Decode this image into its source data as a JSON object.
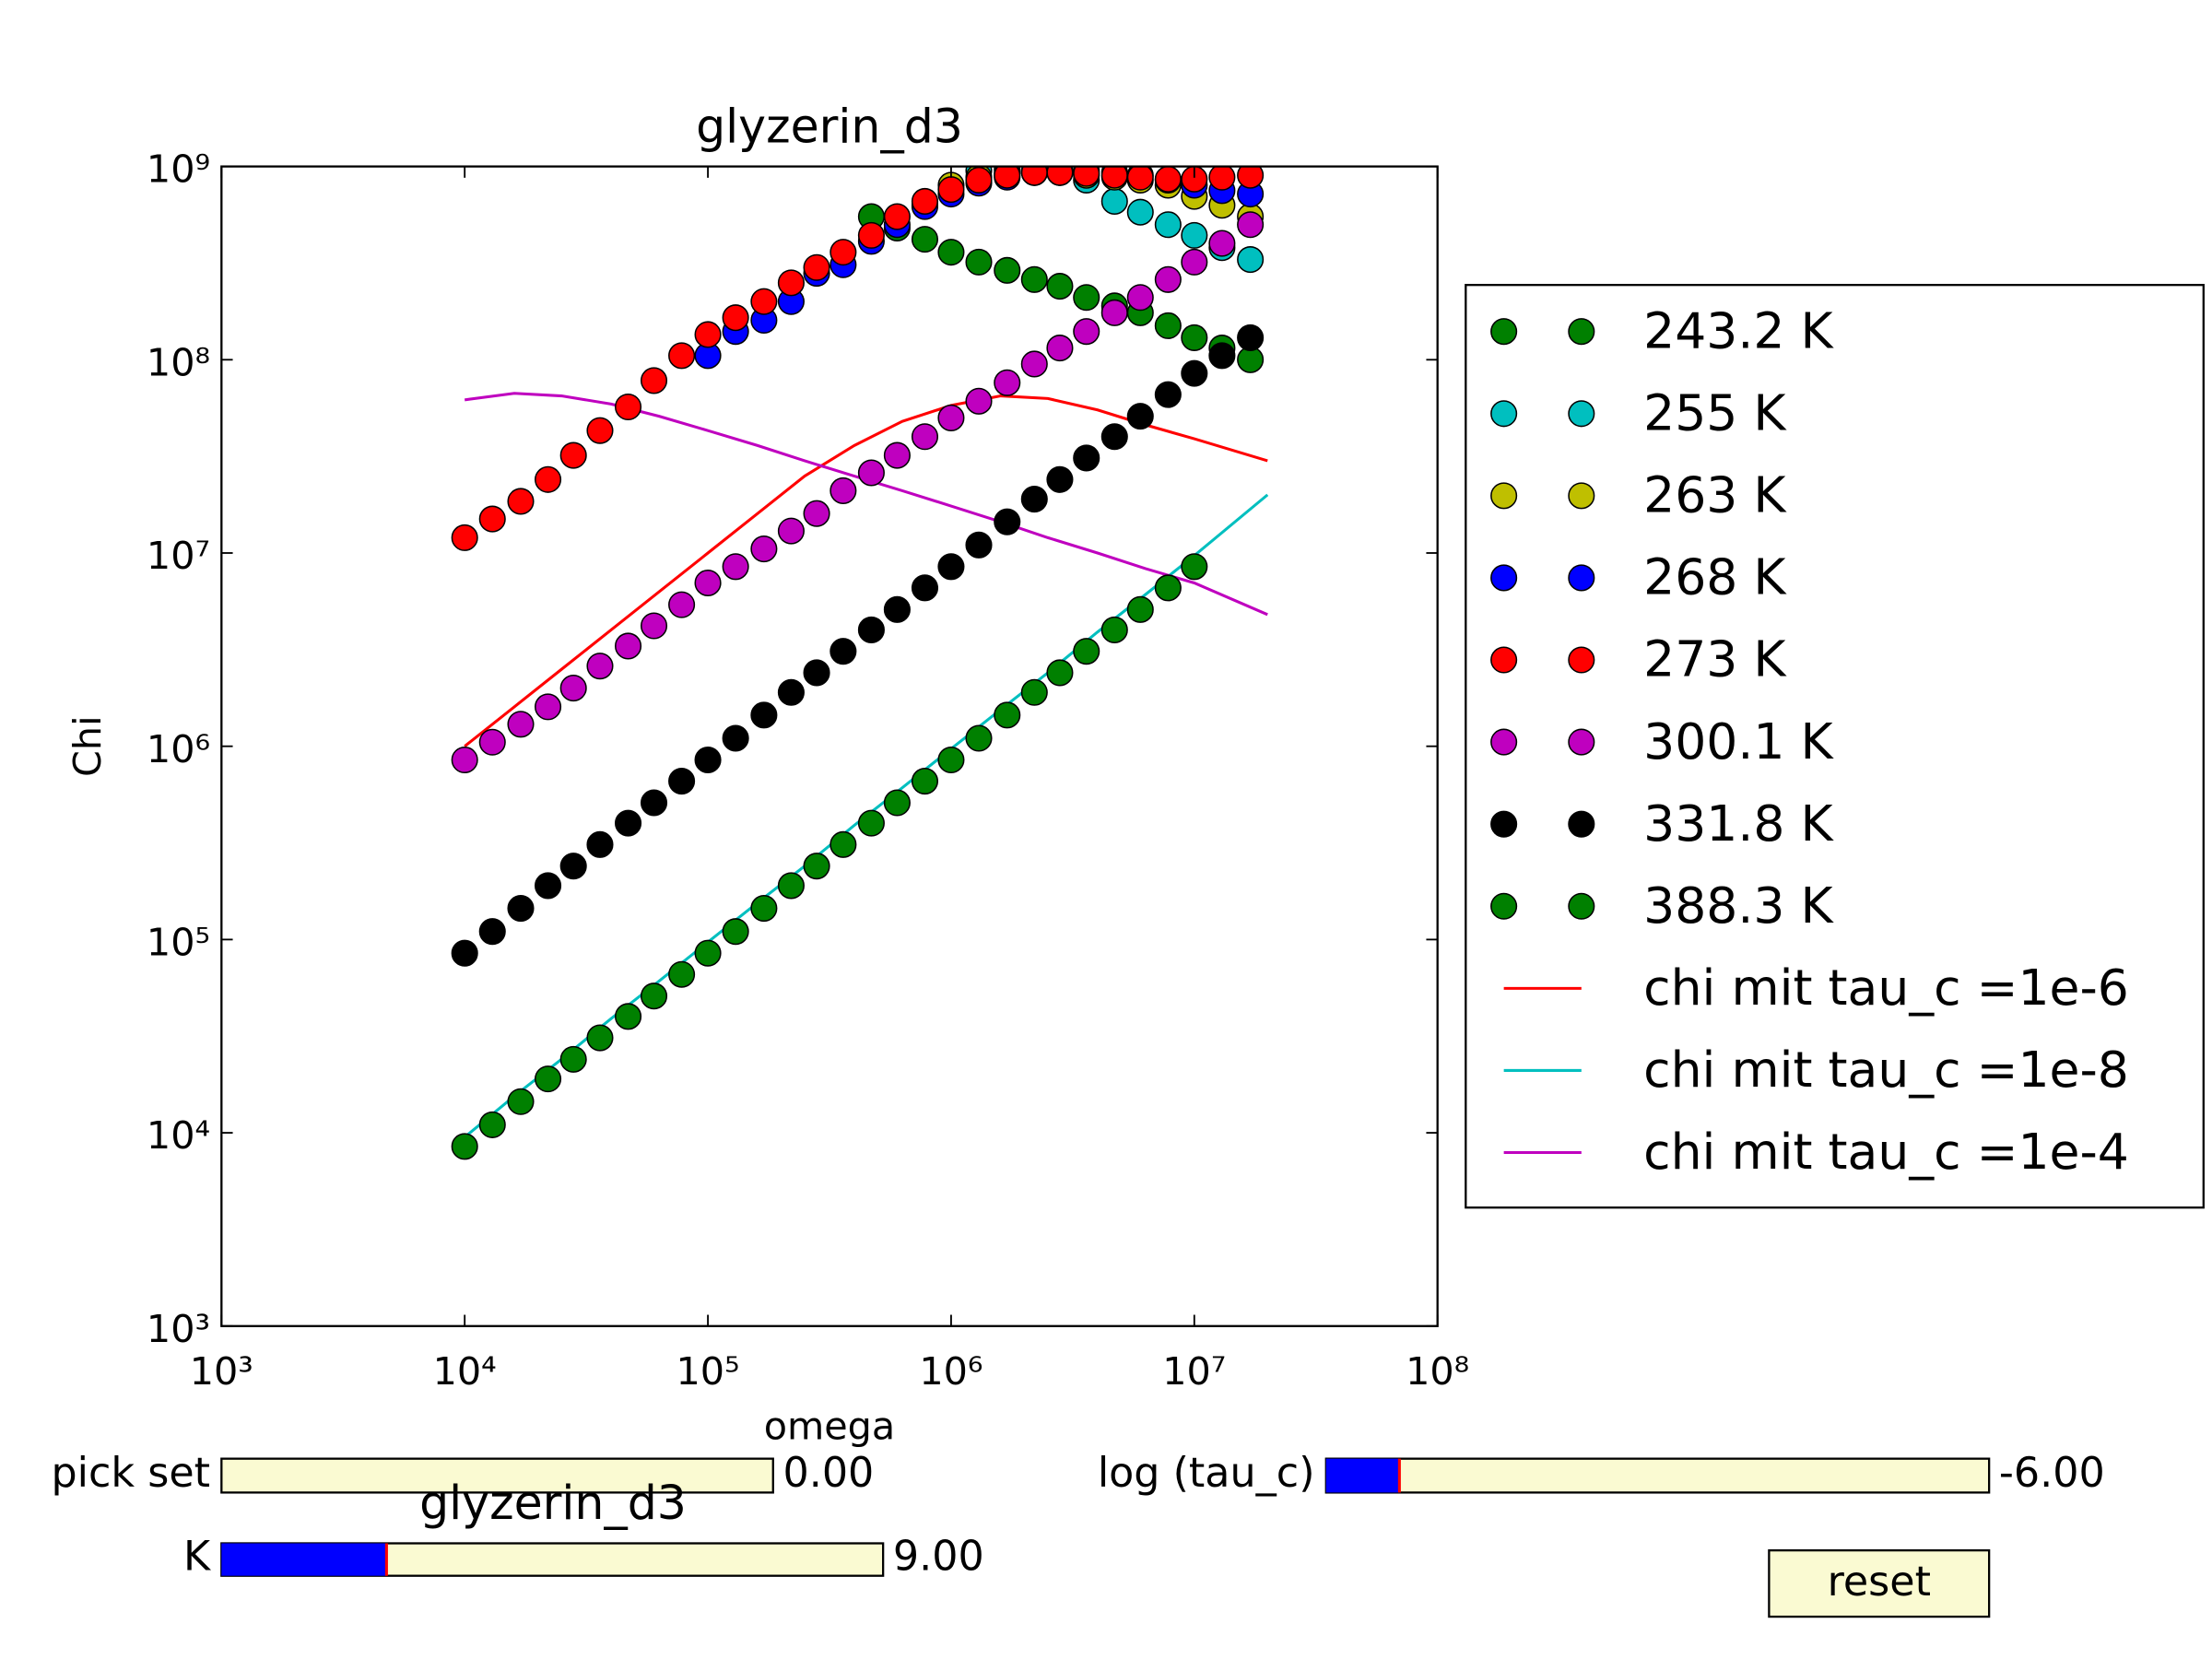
{
  "chart_data": {
    "type": "scatter",
    "title": "glyzerin_d3",
    "x_label": "omega",
    "y_label": "Chi",
    "xlog": true,
    "ylog": true,
    "legend": "outside-right",
    "xlim": [
      1000,
      100000000
    ],
    "ylim": [
      1000,
      1000000000
    ],
    "xticks": [
      {
        "value": 1000,
        "label": "10³"
      },
      {
        "value": 10000,
        "label": "10⁴"
      },
      {
        "value": 100000,
        "label": "10⁵"
      },
      {
        "value": 1000000,
        "label": "10⁶"
      },
      {
        "value": 10000000,
        "label": "10⁷"
      },
      {
        "value": 100000000,
        "label": "10⁸"
      }
    ],
    "yticks": [
      {
        "value": 1000,
        "label": "10³"
      },
      {
        "value": 10000,
        "label": "10⁴"
      },
      {
        "value": 100000,
        "label": "10⁵"
      },
      {
        "value": 1000000,
        "label": "10⁶"
      },
      {
        "value": 10000000,
        "label": "10⁷"
      },
      {
        "value": 100000000,
        "label": "10⁸"
      },
      {
        "value": 1000000000,
        "label": "10⁹"
      }
    ],
    "x": [
      10000.0,
      13000.0,
      17000.0,
      22000.0,
      28000.0,
      36000.0,
      47000.0,
      60000.0,
      78000.0,
      100000.0,
      130000.0,
      170000.0,
      220000.0,
      280000.0,
      360000.0,
      470000.0,
      600000.0,
      780000.0,
      1000000.0,
      1300000.0,
      1700000.0,
      2200000.0,
      2800000.0,
      3600000.0,
      4700000.0,
      6000000.0,
      7800000.0,
      10000000.0,
      13000000.0,
      17000000.0
    ],
    "series": [
      {
        "name": "243.2 K",
        "color": "#008000",
        "style": "marker",
        "values": [
          null,
          null,
          null,
          null,
          null,
          null,
          null,
          null,
          null,
          null,
          null,
          null,
          null,
          null,
          null,
          550000000.0,
          480000000.0,
          420000000.0,
          360000000.0,
          320000000.0,
          290000000.0,
          260000000.0,
          240000000.0,
          210000000.0,
          190000000.0,
          175000000.0,
          150000000.0,
          130000000.0,
          115000000.0,
          100000000.0
        ]
      },
      {
        "name": "255 K",
        "color": "#00bfbf",
        "style": "marker",
        "values": [
          null,
          null,
          null,
          null,
          null,
          null,
          null,
          null,
          null,
          null,
          null,
          null,
          null,
          null,
          null,
          null,
          null,
          null,
          null,
          950000000.0,
          960000000.0,
          950000000.0,
          930000000.0,
          850000000.0,
          660000000.0,
          580000000.0,
          500000000.0,
          440000000.0,
          380000000.0,
          330000000.0
        ]
      },
      {
        "name": "263 K",
        "color": "#bfbf00",
        "style": "marker",
        "values": [
          null,
          null,
          null,
          null,
          null,
          null,
          null,
          null,
          null,
          null,
          null,
          null,
          null,
          null,
          null,
          null,
          null,
          630000000.0,
          800000000.0,
          880000000.0,
          920000000.0,
          930000000.0,
          930000000.0,
          900000000.0,
          880000000.0,
          850000000.0,
          800000000.0,
          700000000.0,
          630000000.0,
          550000000.0
        ]
      },
      {
        "name": "268 K",
        "color": "#0000ff",
        "style": "marker",
        "values": [
          null,
          null,
          null,
          null,
          null,
          null,
          null,
          null,
          null,
          105000000.0,
          140000000.0,
          160000000.0,
          200000000.0,
          280000000.0,
          310000000.0,
          410000000.0,
          500000000.0,
          620000000.0,
          720000000.0,
          820000000.0,
          880000000.0,
          930000000.0,
          950000000.0,
          950000000.0,
          930000000.0,
          900000000.0,
          850000000.0,
          800000000.0,
          750000000.0,
          720000000.0
        ]
      },
      {
        "name": "273 K",
        "color": "#ff0000",
        "style": "marker",
        "values": [
          12000000.0,
          15000000.0,
          18500000.0,
          24000000.0,
          32000000.0,
          43000000.0,
          57000000.0,
          78000000.0,
          105000000.0,
          135000000.0,
          165000000.0,
          200000000.0,
          250000000.0,
          300000000.0,
          360000000.0,
          440000000.0,
          550000000.0,
          660000000.0,
          760000000.0,
          850000000.0,
          900000000.0,
          930000000.0,
          930000000.0,
          920000000.0,
          900000000.0,
          880000000.0,
          860000000.0,
          860000000.0,
          880000000.0,
          900000000.0
        ]
      },
      {
        "name": "300.1 K",
        "color": "#bf00bf",
        "style": "marker",
        "values": [
          850000.0,
          1050000.0,
          1300000.0,
          1600000.0,
          2000000.0,
          2600000.0,
          3300000.0,
          4200000.0,
          5400000.0,
          7000000.0,
          8500000.0,
          10500000.0,
          13000000.0,
          16000000.0,
          21000000.0,
          26000000.0,
          32000000.0,
          40000000.0,
          50000000.0,
          61000000.0,
          76000000.0,
          95000000.0,
          115000000.0,
          140000000.0,
          175000000.0,
          210000000.0,
          260000000.0,
          320000000.0,
          400000000.0,
          500000000.0
        ]
      },
      {
        "name": "331.8 K",
        "color": "#000000",
        "style": "marker",
        "values": [
          85000.0,
          110000.0,
          145000.0,
          190000.0,
          240000.0,
          310000.0,
          400000.0,
          510000.0,
          660000.0,
          850000.0,
          1100000.0,
          1450000.0,
          1900000.0,
          2400000.0,
          3100000.0,
          4000000.0,
          5100000.0,
          6600000.0,
          8500000.0,
          11000000.0,
          14500000.0,
          19000000.0,
          24000000.0,
          31000000.0,
          40000000.0,
          51000000.0,
          66000000.0,
          85000000.0,
          105000000.0,
          130000000.0
        ]
      },
      {
        "name": "388.3 K",
        "color": "#008000",
        "style": "marker",
        "values": [
          8500.0,
          11000.0,
          14500.0,
          19000.0,
          24000.0,
          31000.0,
          40000.0,
          51000.0,
          66000.0,
          85000.0,
          110000.0,
          145000.0,
          190000.0,
          240000.0,
          310000.0,
          400000.0,
          510000.0,
          660000.0,
          850000.0,
          1100000.0,
          1450000.0,
          1900000.0,
          2400000.0,
          3100000.0,
          4000000.0,
          5100000.0,
          6600000.0,
          8500000.0,
          null,
          null
        ]
      },
      {
        "name": "chi mit tau_c =1e-6",
        "color": "#ff0000",
        "style": "line",
        "x": [
          10000.0,
          16000.0,
          25000.0,
          40000.0,
          63000.0,
          100000.0,
          160000.0,
          250000.0,
          400000.0,
          630000.0,
          1000000.0,
          1600000.0,
          2500000.0,
          4000000.0,
          6300000.0,
          10000000.0,
          20000000.0
        ],
        "values": [
          1000000.0,
          1600000.0,
          2500000.0,
          4000000.0,
          6300000.0,
          10000000.0,
          16000000.0,
          25000000.0,
          36000000.0,
          48000000.0,
          58000000.0,
          65000000.0,
          63000000.0,
          55000000.0,
          46000000.0,
          39000000.0,
          30000000.0
        ]
      },
      {
        "name": "chi mit tau_c =1e-8",
        "color": "#00bfbf",
        "style": "line",
        "x": [
          10000.0,
          16000.0,
          25000.0,
          40000.0,
          63000.0,
          100000.0,
          160000.0,
          250000.0,
          400000.0,
          630000.0,
          1000000.0,
          1600000.0,
          2500000.0,
          4000000.0,
          6300000.0,
          10000000.0,
          20000000.0
        ],
        "values": [
          9500.0,
          15500.0,
          24000.0,
          39000.0,
          61000.0,
          97000.0,
          155000.0,
          240000.0,
          390000.0,
          610000.0,
          970000.0,
          1550000.0,
          2400000.0,
          3900000.0,
          6100000.0,
          9700000.0,
          20000000.0
        ]
      },
      {
        "name": "chi mit tau_c =1e-4",
        "color": "#bf00bf",
        "style": "line",
        "x": [
          10000.0,
          16000.0,
          25000.0,
          40000.0,
          63000.0,
          100000.0,
          160000.0,
          250000.0,
          400000.0,
          630000.0,
          1000000.0,
          1600000.0,
          2500000.0,
          4000000.0,
          6300000.0,
          10000000.0,
          20000000.0
        ],
        "values": [
          62000000.0,
          67000000.0,
          65000000.0,
          59000000.0,
          51000000.0,
          43000000.0,
          36000000.0,
          30000000.0,
          25000000.0,
          21000000.0,
          17500000.0,
          14500000.0,
          12000000.0,
          10000000.0,
          8300000.0,
          7000000.0,
          4800000.0
        ]
      }
    ]
  },
  "widgets": {
    "pick_set": {
      "label": "pick set",
      "value": "0.00"
    },
    "k": {
      "label": "K",
      "value": "9.00"
    },
    "overlay_title": "glyzerin_d3",
    "tau": {
      "label": "log (tau_c)",
      "value": "-6.00"
    },
    "reset": "reset"
  }
}
